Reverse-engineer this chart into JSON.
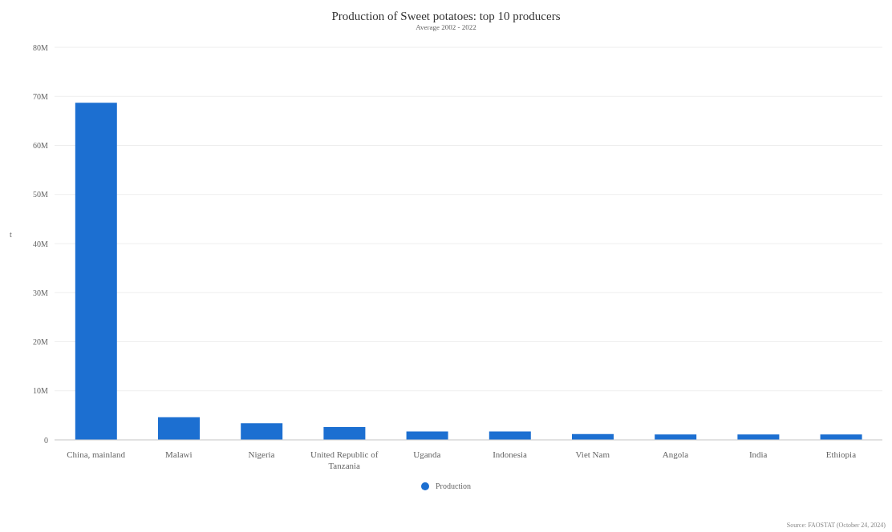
{
  "chart_data": {
    "type": "bar",
    "title": "Production of Sweet potatoes: top 10 producers",
    "subtitle": "Average 2002 - 2022",
    "ylabel": "t",
    "categories": [
      "China, mainland",
      "Malawi",
      "Nigeria",
      "United Republic of Tanzania",
      "Uganda",
      "Indonesia",
      "Viet Nam",
      "Angola",
      "India",
      "Ethiopia"
    ],
    "series": [
      {
        "name": "Production",
        "color": "#1c6fd1",
        "values": [
          68700000,
          4600000,
          3400000,
          2600000,
          1700000,
          1700000,
          1200000,
          1100000,
          1100000,
          1100000
        ]
      }
    ],
    "ylim": [
      0,
      80000000
    ],
    "yticks": [
      {
        "value": 0,
        "label": "0"
      },
      {
        "value": 10000000,
        "label": "10M"
      },
      {
        "value": 20000000,
        "label": "20M"
      },
      {
        "value": 30000000,
        "label": "30M"
      },
      {
        "value": 40000000,
        "label": "40M"
      },
      {
        "value": 50000000,
        "label": "50M"
      },
      {
        "value": 60000000,
        "label": "60M"
      },
      {
        "value": 70000000,
        "label": "70M"
      },
      {
        "value": 80000000,
        "label": "80M"
      }
    ],
    "grid": "y",
    "legend": "bottom",
    "annotations": [
      "Source: FAOSTAT (October 24, 2024)"
    ]
  }
}
